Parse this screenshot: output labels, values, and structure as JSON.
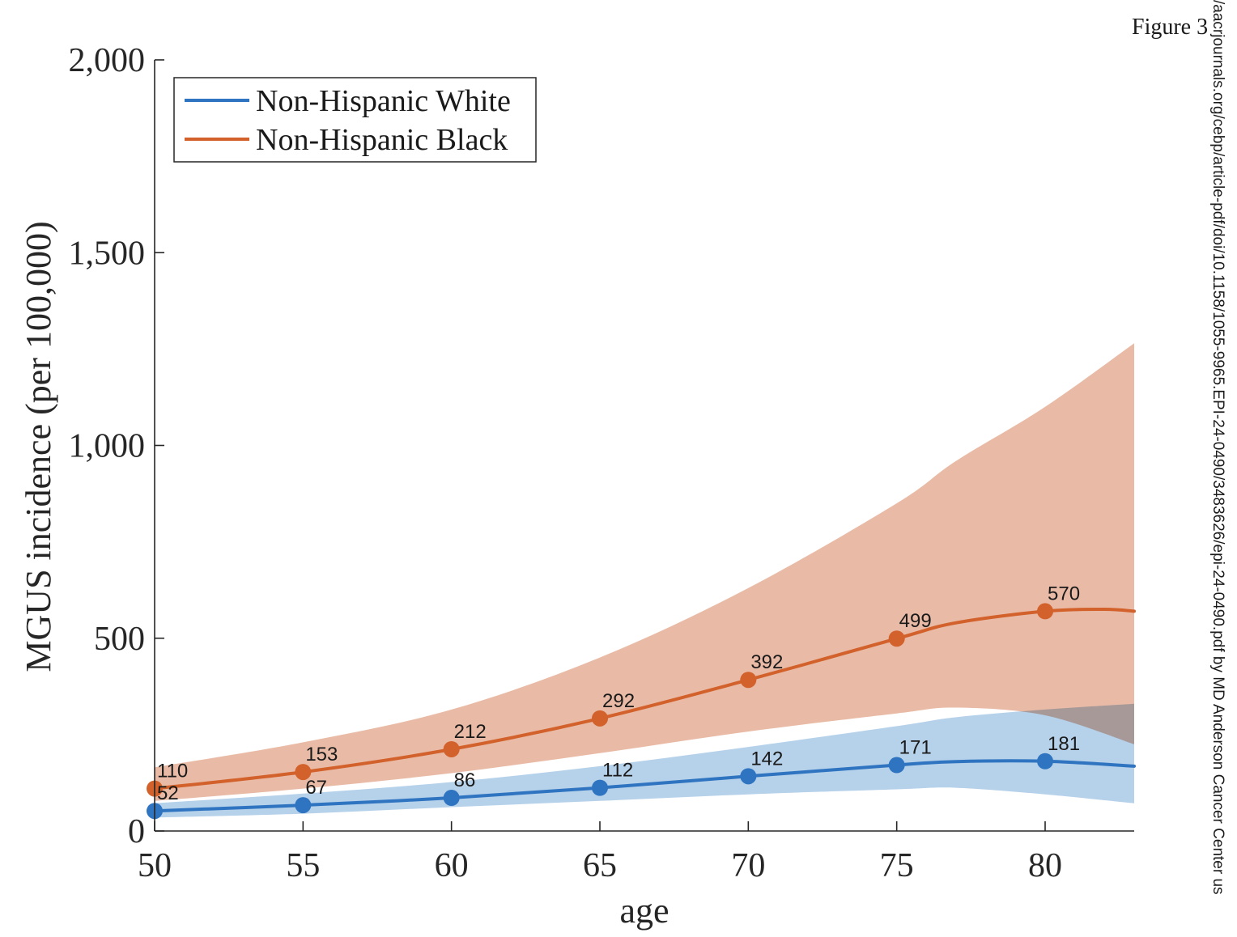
{
  "figure_label": "Figure 3",
  "watermark_text": "/aacrjournals.org/cebp/article-pdf/doi/10.1158/1055-9965.EPI-24-0490/3483626/epi-24-0490.pdf by MD Anderson Cancer Center us",
  "chart_data": {
    "type": "line",
    "xlabel": "age",
    "ylabel": "MGUS incidence (per 100,000)",
    "xlim": [
      50,
      83
    ],
    "ylim": [
      0,
      2000
    ],
    "x_ticks": [
      50,
      55,
      60,
      65,
      70,
      75,
      80
    ],
    "x_tick_labels": [
      "50",
      "55",
      "60",
      "65",
      "70",
      "75",
      "80"
    ],
    "y_ticks": [
      0,
      500,
      1000,
      1500,
      2000
    ],
    "y_tick_labels": [
      "0",
      "500",
      "1,000",
      "1,500",
      "2,000"
    ],
    "grid": false,
    "legend_position": "top-left",
    "series": [
      {
        "name": "Non-Hispanic White",
        "color": "#2f74c0",
        "band_color": "#a9c9e6",
        "x": [
          50,
          55,
          60,
          65,
          70,
          75,
          80
        ],
        "values": [
          52,
          67,
          86,
          112,
          142,
          171,
          181
        ],
        "value_labels": [
          "52",
          "67",
          "86",
          "112",
          "142",
          "171",
          "181"
        ],
        "curve": {
          "x": [
            50,
            55,
            60,
            65,
            70,
            75,
            77,
            80,
            83
          ],
          "y": [
            52,
            67,
            86,
            112,
            142,
            171,
            180,
            181,
            168
          ]
        },
        "ci_band": {
          "x": [
            50,
            55,
            60,
            65,
            70,
            75,
            77,
            80,
            83
          ],
          "lower": [
            35,
            45,
            62,
            78,
            95,
            108,
            112,
            95,
            72
          ],
          "upper": [
            72,
            97,
            127,
            168,
            218,
            272,
            295,
            315,
            330
          ]
        }
      },
      {
        "name": "Non-Hispanic Black",
        "color": "#d2612b",
        "band_color": "#e9bba6",
        "x": [
          50,
          55,
          60,
          65,
          70,
          75,
          80
        ],
        "values": [
          110,
          153,
          212,
          292,
          392,
          499,
          570
        ],
        "value_labels": [
          "110",
          "153",
          "212",
          "292",
          "392",
          "499",
          "570"
        ],
        "curve": {
          "x": [
            50,
            55,
            60,
            65,
            70,
            75,
            77,
            80,
            82,
            83
          ],
          "y": [
            110,
            153,
            212,
            292,
            392,
            499,
            540,
            570,
            575,
            570
          ]
        },
        "ci_band": {
          "x": [
            50,
            55,
            60,
            65,
            70,
            75,
            77,
            80,
            83
          ],
          "lower": [
            78,
            110,
            150,
            202,
            258,
            305,
            320,
            300,
            225
          ],
          "upper": [
            165,
            230,
            315,
            450,
            630,
            850,
            960,
            1100,
            1265
          ]
        }
      }
    ]
  }
}
